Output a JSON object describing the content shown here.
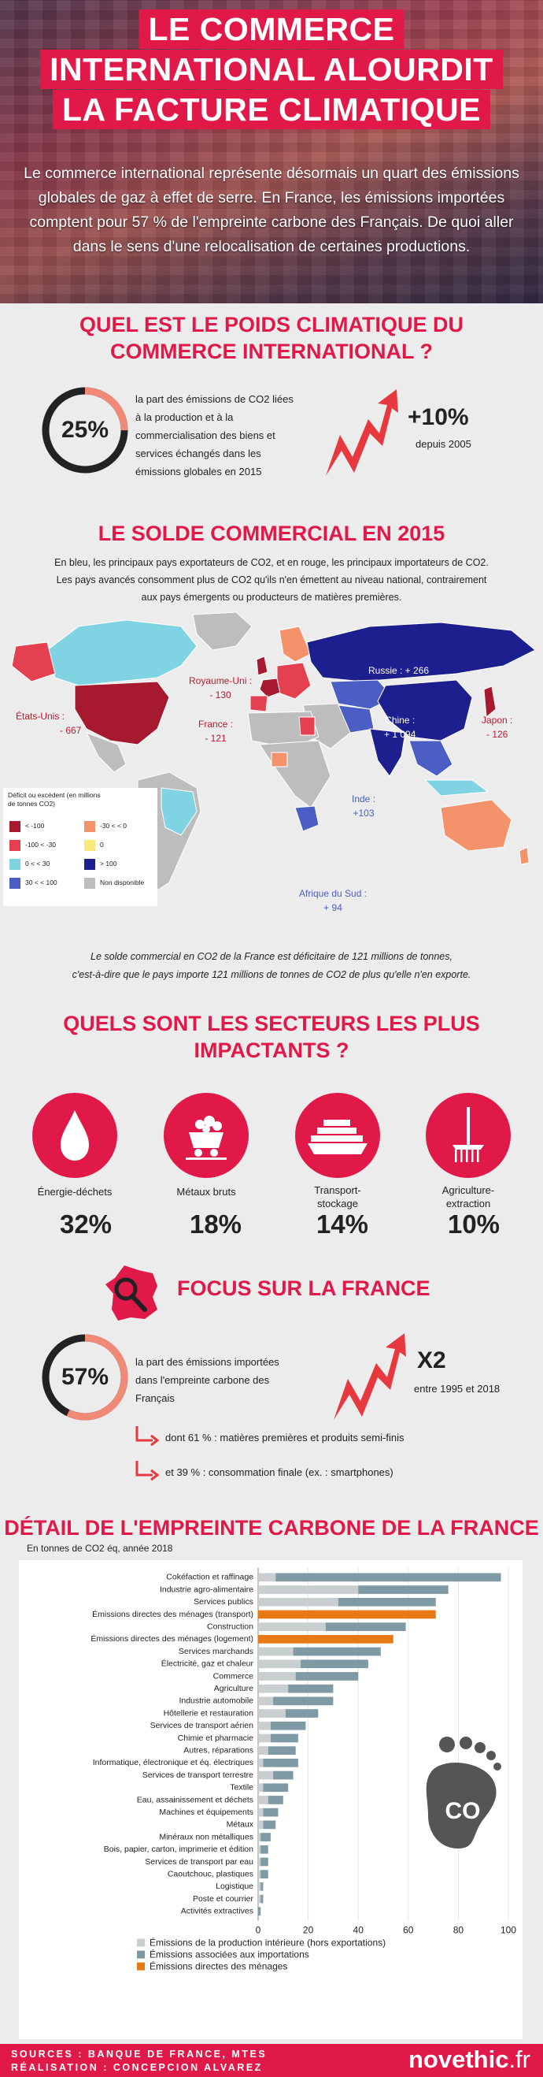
{
  "header": {
    "title_lines": [
      "LE COMMERCE",
      "INTERNATIONAL ALOURDIT",
      "LA FACTURE CLIMATIQUE"
    ],
    "intro": "Le commerce international représente désormais un quart des émissions globales de gaz à effet de serre. En France, les émissions importées comptent pour 57 % de l'empreinte carbone des Français. De quoi aller dans le sens d'une relocalisation de certaines productions."
  },
  "poids": {
    "title_line1": "QUEL EST LE POIDS CLIMATIQUE DU",
    "title_line2": "COMMERCE INTERNATIONAL ?",
    "ring_value": "25%",
    "ring_fraction": 0.25,
    "description": [
      "la part des émissions de CO2 liées",
      "à la production et à la",
      "commercialisation des biens et",
      "services échangés dans les",
      "émissions globales en 2015"
    ],
    "increase": "+10%",
    "increase_note": "depuis 2005"
  },
  "solde": {
    "title": "LE SOLDE COMMERCIAL EN 2015",
    "text_lines": [
      "En bleu, les principaux pays exportateurs de CO2, et en rouge, les principaux importateurs de CO2.",
      "Les pays avancés consomment plus de CO2 qu'ils n'en émettent au niveau national, contrairement",
      "aux pays émergents ou producteurs de matières premières."
    ],
    "labels": {
      "us_name": "États-Unis :",
      "us_val": "- 667",
      "uk_name": "Royaume-Uni :",
      "uk_val": "- 130",
      "fr_name": "France :",
      "fr_val": "- 121",
      "ru_name": "Russie : + 266",
      "cn_name": "Chine :",
      "cn_val": "+ 1 094",
      "jp_name": "Japon :",
      "jp_val": "- 126",
      "in_name": "Inde :",
      "in_val": "+103",
      "za_name": "Afrique du Sud :",
      "za_val": "+ 94"
    },
    "legend": {
      "title": "Déficit ou excédent (en millions de tonnes CO2)",
      "items": [
        {
          "label": "< -100",
          "color": "#a6192e"
        },
        {
          "label": "-30 < < 0",
          "color": "#f4926b"
        },
        {
          "label": "-100 < -30",
          "color": "#e4404f"
        },
        {
          "label": "0",
          "color": "#f7ea7a"
        },
        {
          "label": "0 < < 30",
          "color": "#7fd3e3"
        },
        {
          "label": "> 100",
          "color": "#1e1f8e"
        },
        {
          "label": "30 < < 100",
          "color": "#4a5ec4"
        },
        {
          "label": "Non disponible",
          "color": "#bdbdbd"
        }
      ]
    },
    "note_line1": "Le solde commercial en CO2 de la France est déficitaire de 121 millions de tonnes,",
    "note_line2": "c'est-à-dire que le pays importe 121 millions de tonnes de CO2 de plus qu'elle n'en exporte."
  },
  "secteurs": {
    "title_line1": "QUELS SONT LES SECTEURS LES PLUS",
    "title_line2": "IMPACTANTS ?",
    "items": [
      {
        "label": "Énergie-déchets",
        "pct": "32%",
        "icon": "drop-icon"
      },
      {
        "label": "Métaux bruts",
        "pct": "18%",
        "icon": "mine-cart-icon"
      },
      {
        "label": "Transport-\nstockage",
        "pct": "14%",
        "icon": "ship-icon"
      },
      {
        "label": "Agriculture-\nextraction",
        "pct": "10%",
        "icon": "rake-icon"
      }
    ]
  },
  "france": {
    "title": "FOCUS SUR LA FRANCE",
    "ring_value": "57%",
    "ring_fraction": 0.57,
    "description": [
      "la part des émissions importées",
      "dans l'empreinte carbone des",
      "Français"
    ],
    "multiplier": "X2",
    "multiplier_note": "entre 1995 et 2018",
    "split1": "dont 61 % : matières premières et produits semi-finis",
    "split2": "et 39 % : consommation finale (ex. : smartphones)"
  },
  "chart_data": {
    "type": "bar",
    "title": "DÉTAIL DE L'EMPREINTE CARBONE DE LA FRANCE",
    "subtitle": "En tonnes de CO2 éq, année 2018",
    "orientation": "horizontal",
    "stacked": true,
    "xlim": [
      0,
      100
    ],
    "xticks": [
      0,
      20,
      40,
      60,
      80,
      100
    ],
    "grid": true,
    "legend_position": "bottom",
    "categories": [
      "Cokéfaction et raffinage",
      "Industrie agro-alimentaire",
      "Services publics",
      "Émissions directes des ménages (transport)",
      "Construction",
      "Émissions directes des ménages (logement)",
      "Services marchands",
      "Électricité, gaz et chaleur",
      "Commerce",
      "Agriculture",
      "Industrie automobile",
      "Hôtellerie et restauration",
      "Services de transport aérien",
      "Chimie et pharmacie",
      "Autres, réparations",
      "Informatique, électronique et éq. électriques",
      "Services de transport terrestre",
      "Textile",
      "Eau, assainissement et déchets",
      "Machines et équipements",
      "Métaux",
      "Minéraux non métalliques",
      "Bois, papier, carton, imprimerie et édition",
      "Services de transport par eau",
      "Caoutchouc, plastiques",
      "Logistique",
      "Poste et courrier",
      "Activités extractives"
    ],
    "series": [
      {
        "name": "Émissions de la production intérieure (hors exportations)",
        "color": "#c9ced1",
        "values": [
          7,
          40,
          32,
          0,
          27,
          0,
          14,
          17,
          15,
          12,
          6,
          11,
          5,
          5,
          4,
          2,
          6,
          2,
          4,
          2,
          2,
          1,
          1,
          1,
          1,
          1,
          1,
          0
        ]
      },
      {
        "name": "Émissions associées aux importations",
        "color": "#7f9aa5",
        "values": [
          90,
          36,
          39,
          0,
          32,
          0,
          35,
          27,
          25,
          18,
          24,
          13,
          14,
          11,
          11,
          14,
          8,
          10,
          6,
          6,
          5,
          4,
          3,
          3,
          3,
          1,
          1,
          1
        ]
      },
      {
        "name": "Émissions directes des ménages",
        "color": "#e87a16",
        "values": [
          0,
          0,
          0,
          71,
          0,
          54,
          0,
          0,
          0,
          0,
          0,
          0,
          0,
          0,
          0,
          0,
          0,
          0,
          0,
          0,
          0,
          0,
          0,
          0,
          0,
          0,
          0,
          0
        ]
      }
    ]
  },
  "footer": {
    "sources": "SOURCES : BANQUE DE FRANCE, MTES",
    "credit": "RÉALISATION : CONCEPCION ALVAREZ",
    "logo_bold": "novethic",
    "logo_rest": ".fr"
  },
  "colors": {
    "accent": "#e01949",
    "salmon": "#f08a77"
  }
}
